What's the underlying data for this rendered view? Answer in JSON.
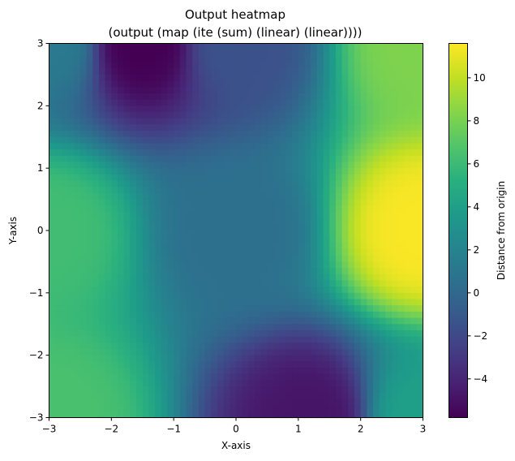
{
  "chart_data": {
    "type": "heatmap",
    "title": "Output heatmap",
    "subtitle": "(output (map (ite (sum) (linear) (linear))))",
    "xlabel": "X-axis",
    "ylabel": "Y-axis",
    "colorbar_label": "Distance from origin",
    "xlim": [
      -3,
      3
    ],
    "ylim": [
      -3,
      3
    ],
    "x_ticks": [
      -3,
      -2,
      -1,
      0,
      1,
      2,
      3
    ],
    "y_ticks": [
      -3,
      -2,
      -1,
      0,
      1,
      2,
      3
    ],
    "x_tick_labels": [
      "−3",
      "−2",
      "−1",
      "0",
      "1",
      "2",
      "3"
    ],
    "y_tick_labels": [
      "−3",
      "−2",
      "−1",
      "0",
      "1",
      "2",
      "3"
    ],
    "colorbar_range": [
      -5.8,
      11.6
    ],
    "colorbar_ticks": [
      -4,
      -2,
      0,
      2,
      4,
      6,
      8,
      10
    ],
    "colorbar_tick_labels": [
      "−4",
      "−2",
      "0",
      "2",
      "4",
      "6",
      "8",
      "10"
    ],
    "colormap": "viridis",
    "grid": false,
    "sample_values": [
      {
        "x": -3,
        "y": 3,
        "value": 1.2
      },
      {
        "x": -1.5,
        "y": 3,
        "value": -5.8
      },
      {
        "x": 0,
        "y": 3,
        "value": -1.5
      },
      {
        "x": 3,
        "y": 3,
        "value": 8.2
      },
      {
        "x": -3,
        "y": 0,
        "value": 6.2
      },
      {
        "x": 0,
        "y": 0,
        "value": 0.5
      },
      {
        "x": 3,
        "y": 0,
        "value": 11.5
      },
      {
        "x": -3,
        "y": -3,
        "value": 6.5
      },
      {
        "x": 1.2,
        "y": -3,
        "value": -4.8
      },
      {
        "x": 3,
        "y": -3,
        "value": 4.0
      }
    ]
  }
}
